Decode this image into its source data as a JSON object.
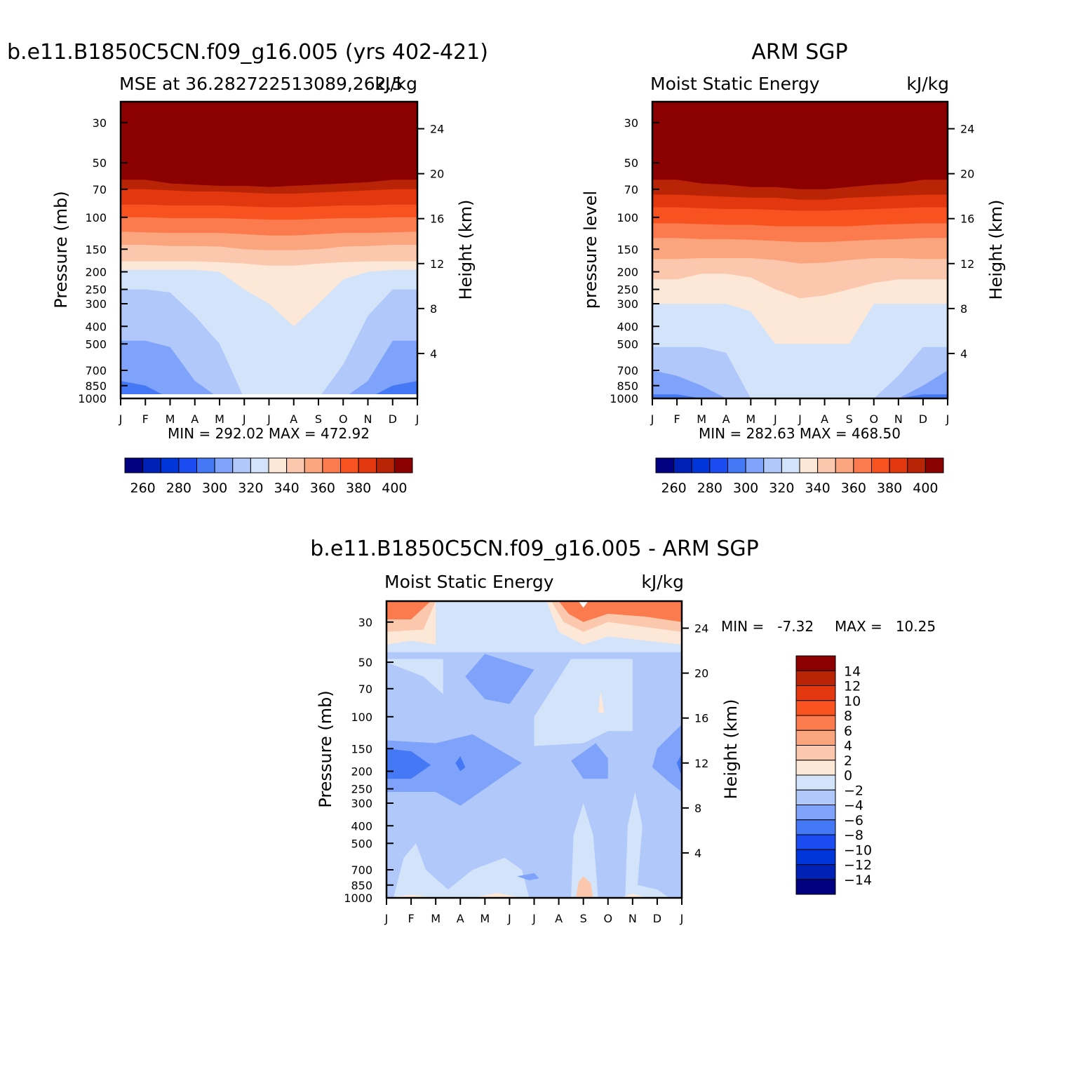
{
  "colors": {
    "mse_palette": [
      "#000080",
      "#0021b5",
      "#0035d9",
      "#1a4cf2",
      "#4478f5",
      "#7fa3fa",
      "#b0c8fa",
      "#d3e4fa",
      "#fde8d8",
      "#fcc8ad",
      "#fba57f",
      "#fb7b4e",
      "#f95221",
      "#e33710",
      "#b82405",
      "#8b0000"
    ],
    "diff_palette": [
      "#000080",
      "#0021b5",
      "#0035d9",
      "#1a4cf2",
      "#4478f5",
      "#7fa3fa",
      "#b0c8fa",
      "#d3e4fa",
      "#fde8d8",
      "#fcc8ad",
      "#fba57f",
      "#fb7b4e",
      "#f95221",
      "#e33710",
      "#b82405",
      "#8b0000"
    ]
  },
  "panels": {
    "model": {
      "title": "b.e11.B1850C5CN.f09_g16.005 (yrs 402-421)",
      "subtitle_left": "MSE at 36.282722513089,262.5",
      "subtitle_right": "kJ/kg",
      "ylabel": "Pressure (mb)",
      "ylabel_right": "Height (km)",
      "minmax": "MIN = 292.02 MAX = 472.92"
    },
    "obs": {
      "title": "ARM SGP",
      "subtitle_left": "Moist Static Energy",
      "subtitle_right": "kJ/kg",
      "ylabel": "pressure level",
      "ylabel_right": "Height (km)",
      "minmax": "MIN = 282.63 MAX = 468.50"
    },
    "diff": {
      "title": "b.e11.B1850C5CN.f09_g16.005 - ARM SGP",
      "subtitle_left": "Moist Static Energy",
      "subtitle_right": "kJ/kg",
      "ylabel": "Pressure (mb)",
      "ylabel_right": "Height (km)",
      "minmax_min": "MIN =   -7.32",
      "minmax_max": "MAX =   10.25"
    }
  },
  "chart_data": [
    {
      "type": "heatmap",
      "name": "model",
      "x": [
        "J",
        "F",
        "M",
        "A",
        "M",
        "J",
        "J",
        "A",
        "S",
        "O",
        "N",
        "D",
        "J"
      ],
      "y_pressure_ticks": [
        30,
        50,
        70,
        100,
        150,
        200,
        250,
        300,
        400,
        500,
        700,
        850,
        1000
      ],
      "y_height_ticks": [
        4,
        8,
        12,
        16,
        20,
        24
      ],
      "levels": [
        260,
        270,
        280,
        290,
        300,
        310,
        320,
        330,
        340,
        350,
        360,
        370,
        380,
        390,
        400
      ],
      "colorbar_labels": [
        "260",
        "280",
        "300",
        "320",
        "340",
        "360",
        "380",
        "400"
      ],
      "contour_levels_mb_by_month": {
        "min": 292.02,
        "max": 472.92,
        "l400": [
          62,
          62,
          65,
          66,
          67,
          67,
          68,
          67,
          66,
          65,
          64,
          62,
          62
        ],
        "l390": [
          70,
          70,
          71,
          72,
          72,
          73,
          74,
          74,
          73,
          72,
          71,
          70,
          70
        ],
        "l380": [
          85,
          85,
          86,
          86,
          86,
          87,
          88,
          88,
          87,
          86,
          86,
          85,
          85
        ],
        "l370": [
          100,
          100,
          101,
          101,
          101,
          102,
          103,
          103,
          102,
          101,
          101,
          100,
          100
        ],
        "l360": [
          120,
          121,
          122,
          122,
          122,
          124,
          126,
          126,
          124,
          122,
          122,
          121,
          120
        ],
        "l350": [
          142,
          142,
          144,
          144,
          145,
          150,
          152,
          152,
          150,
          145,
          144,
          142,
          142
        ],
        "l340": [
          175,
          175,
          175,
          175,
          177,
          180,
          185,
          185,
          180,
          177,
          175,
          175,
          175
        ],
        "l330": [
          195,
          195,
          195,
          195,
          200,
          250,
          300,
          400,
          300,
          220,
          200,
          195,
          195
        ],
        "l320": [
          250,
          250,
          260,
          350,
          500,
          1000,
          1000,
          1000,
          1000,
          650,
          350,
          250,
          250
        ],
        "l310": [
          480,
          480,
          520,
          800,
          1000,
          1000,
          1000,
          1000,
          1000,
          1000,
          800,
          480,
          480
        ],
        "l300": [
          800,
          850,
          1000,
          1000,
          1000,
          1000,
          1000,
          1000,
          1000,
          1000,
          1000,
          850,
          800
        ]
      }
    },
    {
      "type": "heatmap",
      "name": "obs",
      "x": [
        "J",
        "F",
        "M",
        "A",
        "M",
        "J",
        "J",
        "A",
        "S",
        "O",
        "N",
        "D",
        "J"
      ],
      "y_pressure_ticks": [
        30,
        50,
        70,
        100,
        150,
        200,
        250,
        300,
        400,
        500,
        700,
        850,
        1000
      ],
      "y_height_ticks": [
        4,
        8,
        12,
        16,
        20,
        24
      ],
      "levels": [
        260,
        270,
        280,
        290,
        300,
        310,
        320,
        330,
        340,
        350,
        360,
        370,
        380,
        390,
        400
      ],
      "colorbar_labels": [
        "260",
        "280",
        "300",
        "320",
        "340",
        "360",
        "380",
        "400"
      ],
      "contour_levels_mb_by_month": {
        "min": 282.63,
        "max": 468.5,
        "l400": [
          62,
          62,
          65,
          66,
          68,
          68,
          70,
          70,
          68,
          66,
          65,
          62,
          62
        ],
        "l390": [
          75,
          75,
          76,
          77,
          78,
          78,
          80,
          80,
          78,
          77,
          76,
          75,
          75
        ],
        "l380": [
          88,
          88,
          89,
          90,
          90,
          91,
          92,
          92,
          91,
          90,
          89,
          88,
          88
        ],
        "l370": [
          108,
          108,
          109,
          110,
          110,
          112,
          112,
          112,
          112,
          110,
          109,
          108,
          108
        ],
        "l360": [
          130,
          130,
          132,
          132,
          133,
          135,
          137,
          137,
          135,
          133,
          132,
          130,
          130
        ],
        "l350": [
          170,
          170,
          168,
          168,
          168,
          172,
          180,
          178,
          172,
          168,
          168,
          170,
          170
        ],
        "l340": [
          220,
          220,
          205,
          205,
          215,
          250,
          280,
          270,
          250,
          230,
          220,
          220,
          220
        ],
        "l330": [
          300,
          300,
          300,
          300,
          330,
          500,
          500,
          500,
          500,
          300,
          300,
          300,
          300
        ],
        "l320": [
          520,
          520,
          520,
          560,
          1000,
          1000,
          1000,
          1000,
          1000,
          1000,
          750,
          520,
          520
        ],
        "l310": [
          700,
          750,
          850,
          1000,
          1000,
          1000,
          1000,
          1000,
          1000,
          1000,
          1000,
          850,
          700
        ],
        "l300": [
          950,
          950,
          1000,
          1000,
          1000,
          1000,
          1000,
          1000,
          1000,
          1000,
          1000,
          950,
          950
        ]
      }
    },
    {
      "type": "heatmap",
      "name": "difference",
      "x": [
        "J",
        "F",
        "M",
        "A",
        "M",
        "J",
        "J",
        "A",
        "S",
        "O",
        "N",
        "D",
        "J"
      ],
      "y_pressure_ticks": [
        30,
        50,
        70,
        100,
        150,
        200,
        250,
        300,
        400,
        500,
        700,
        850,
        1000
      ],
      "y_height_ticks": [
        4,
        8,
        12,
        16,
        20,
        24
      ],
      "levels": [
        -14,
        -12,
        -10,
        -8,
        -6,
        -4,
        -2,
        0,
        2,
        4,
        6,
        8,
        10,
        12,
        14
      ],
      "colorbar_labels": [
        "14",
        "12",
        "10",
        "8",
        "6",
        "4",
        "2",
        "0",
        "−2",
        "−4",
        "−6",
        "−8",
        "−10",
        "−12",
        "−14"
      ],
      "min": -7.32,
      "max": 10.25
    }
  ]
}
